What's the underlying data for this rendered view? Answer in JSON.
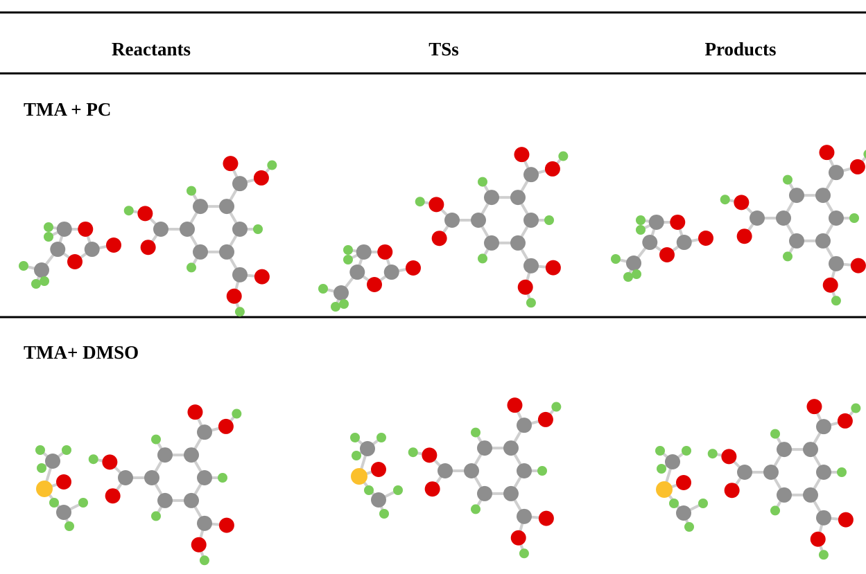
{
  "table": {
    "columns": [
      "Reactants",
      "TSs",
      "Products"
    ],
    "rows": [
      {
        "label": "TMA + PC"
      },
      {
        "label": "TMA+ DMSO"
      }
    ]
  }
}
